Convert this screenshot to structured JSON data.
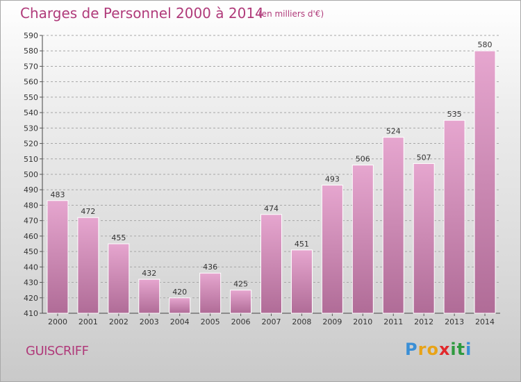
{
  "header": {
    "title": "Charges de Personnel 2000 à 2014",
    "subtitle": "(en milliers d'€)"
  },
  "footer": {
    "commune": "GUISCRIFF",
    "brand": "Proxiti",
    "brand_letters": [
      {
        "char": "P",
        "color": "#3a8fd6"
      },
      {
        "char": "r",
        "color": "#e8a317"
      },
      {
        "char": "o",
        "color": "#e8a317"
      },
      {
        "char": "x",
        "color": "#e2282b"
      },
      {
        "char": "i",
        "color": "#2f9a3f"
      },
      {
        "char": "t",
        "color": "#2f9a3f"
      },
      {
        "char": "i",
        "color": "#3a8fd6"
      }
    ]
  },
  "colors": {
    "accent": "#b03a7a",
    "bar_top": "#e6a6cf",
    "bar_bottom": "#b06c97",
    "grid": "#a6a6a6"
  },
  "chart_data": {
    "type": "bar",
    "categories": [
      "2000",
      "2001",
      "2002",
      "2003",
      "2004",
      "2005",
      "2006",
      "2007",
      "2008",
      "2009",
      "2010",
      "2011",
      "2012",
      "2013",
      "2014"
    ],
    "values": [
      483,
      472,
      455,
      432,
      420,
      436,
      425,
      474,
      451,
      493,
      506,
      524,
      507,
      535,
      580
    ],
    "title": "Charges de Personnel 2000 à 2014",
    "subtitle": "(en milliers d'€)",
    "ylim": [
      410,
      590
    ],
    "yticks": [
      410,
      420,
      430,
      440,
      450,
      460,
      470,
      480,
      490,
      500,
      510,
      520,
      530,
      540,
      550,
      560,
      570,
      580,
      590
    ],
    "grid": true,
    "data_labels": true
  }
}
